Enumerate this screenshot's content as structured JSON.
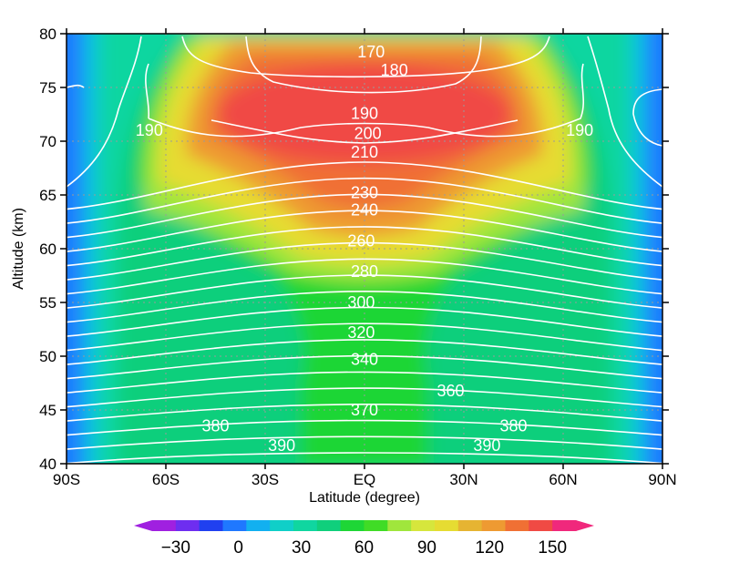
{
  "chart_data": {
    "type": "heatmap",
    "xlabel": "Latitude (degree)",
    "ylabel": "Altitude (km)",
    "x_ticks": [
      "90S",
      "60S",
      "30S",
      "EQ",
      "30N",
      "60N",
      "90N"
    ],
    "x_tick_values": [
      -90,
      -60,
      -30,
      0,
      30,
      60,
      90
    ],
    "y_ticks": [
      "40",
      "45",
      "50",
      "55",
      "60",
      "65",
      "70",
      "75",
      "80"
    ],
    "y_tick_values": [
      40,
      45,
      50,
      55,
      60,
      65,
      70,
      75,
      80
    ],
    "xlim": [
      -90,
      90
    ],
    "ylim": [
      40,
      80
    ],
    "grid": true,
    "shaded_field": {
      "levels": [
        -30,
        -15,
        0,
        15,
        30,
        45,
        60,
        75,
        90,
        105,
        120,
        135,
        150
      ],
      "colorbar_labels": [
        "−30",
        "0",
        "30",
        "60",
        "90",
        "120",
        "150"
      ],
      "colorbar_label_values": [
        -30,
        0,
        30,
        60,
        90,
        120,
        150
      ],
      "colors": [
        "#a020e0",
        "#6e2ef0",
        "#2040f0",
        "#1f78ff",
        "#12b0f0",
        "#10cfc8",
        "#10d6a0",
        "#10cf7c",
        "#1ed636",
        "#40dc26",
        "#a0e63c",
        "#d6e63c",
        "#e6dc32",
        "#e6b432",
        "#ee9a32",
        "#f07034",
        "#f04a44",
        "#f0287c"
      ],
      "samples": [
        {
          "lat": -88,
          "alt": 60,
          "value": -5
        },
        {
          "lat": -75,
          "alt": 60,
          "value": 35
        },
        {
          "lat": -55,
          "alt": 65,
          "value": 85
        },
        {
          "lat": -20,
          "alt": 72,
          "value": 140
        },
        {
          "lat": 0,
          "alt": 65,
          "value": 120
        },
        {
          "lat": 0,
          "alt": 55,
          "value": 85
        },
        {
          "lat": 0,
          "alt": 45,
          "value": 60
        },
        {
          "lat": 0,
          "alt": 41,
          "value": 55
        },
        {
          "lat": -45,
          "alt": 50,
          "value": 55
        },
        {
          "lat": 45,
          "alt": 50,
          "value": 55
        },
        {
          "lat": 55,
          "alt": 70,
          "value": 100
        },
        {
          "lat": 88,
          "alt": 60,
          "value": -5
        }
      ]
    },
    "contours": [
      {
        "value": 170,
        "label": "170"
      },
      {
        "value": 180,
        "label": "180"
      },
      {
        "value": 190,
        "label": "190"
      },
      {
        "value": 200,
        "label": "200"
      },
      {
        "value": 210,
        "label": "210"
      },
      {
        "value": 220,
        "label": ""
      },
      {
        "value": 230,
        "label": "230"
      },
      {
        "value": 240,
        "label": "240"
      },
      {
        "value": 250,
        "label": ""
      },
      {
        "value": 260,
        "label": "260"
      },
      {
        "value": 270,
        "label": ""
      },
      {
        "value": 280,
        "label": "280"
      },
      {
        "value": 290,
        "label": ""
      },
      {
        "value": 300,
        "label": "300"
      },
      {
        "value": 310,
        "label": ""
      },
      {
        "value": 320,
        "label": "320"
      },
      {
        "value": 330,
        "label": ""
      },
      {
        "value": 340,
        "label": "340"
      },
      {
        "value": 350,
        "label": ""
      },
      {
        "value": 360,
        "label": "360"
      },
      {
        "value": 370,
        "label": "370"
      },
      {
        "value": 380,
        "label": "380"
      },
      {
        "value": 390,
        "label": "390"
      }
    ],
    "contour_labels": [
      {
        "text": "170",
        "lat": 2,
        "alt": 78.3
      },
      {
        "text": "180",
        "lat": 9,
        "alt": 76.6
      },
      {
        "text": "190",
        "lat": -65,
        "alt": 71.0
      },
      {
        "text": "190",
        "lat": 0,
        "alt": 72.6
      },
      {
        "text": "190",
        "lat": 65,
        "alt": 71.0
      },
      {
        "text": "200",
        "lat": 1,
        "alt": 70.7
      },
      {
        "text": "210",
        "lat": 0,
        "alt": 69.0
      },
      {
        "text": "230",
        "lat": 0,
        "alt": 65.2
      },
      {
        "text": "240",
        "lat": 0,
        "alt": 63.6
      },
      {
        "text": "260",
        "lat": -1,
        "alt": 60.7
      },
      {
        "text": "280",
        "lat": 0,
        "alt": 57.9
      },
      {
        "text": "300",
        "lat": -1,
        "alt": 55.0
      },
      {
        "text": "320",
        "lat": -1,
        "alt": 52.2
      },
      {
        "text": "340",
        "lat": 0,
        "alt": 49.7
      },
      {
        "text": "360",
        "lat": 26,
        "alt": 46.8
      },
      {
        "text": "370",
        "lat": 0,
        "alt": 45.0
      },
      {
        "text": "380",
        "lat": -45,
        "alt": 43.5
      },
      {
        "text": "380",
        "lat": 45,
        "alt": 43.5
      },
      {
        "text": "390",
        "lat": -25,
        "alt": 41.7
      },
      {
        "text": "390",
        "lat": 37,
        "alt": 41.7
      }
    ]
  }
}
